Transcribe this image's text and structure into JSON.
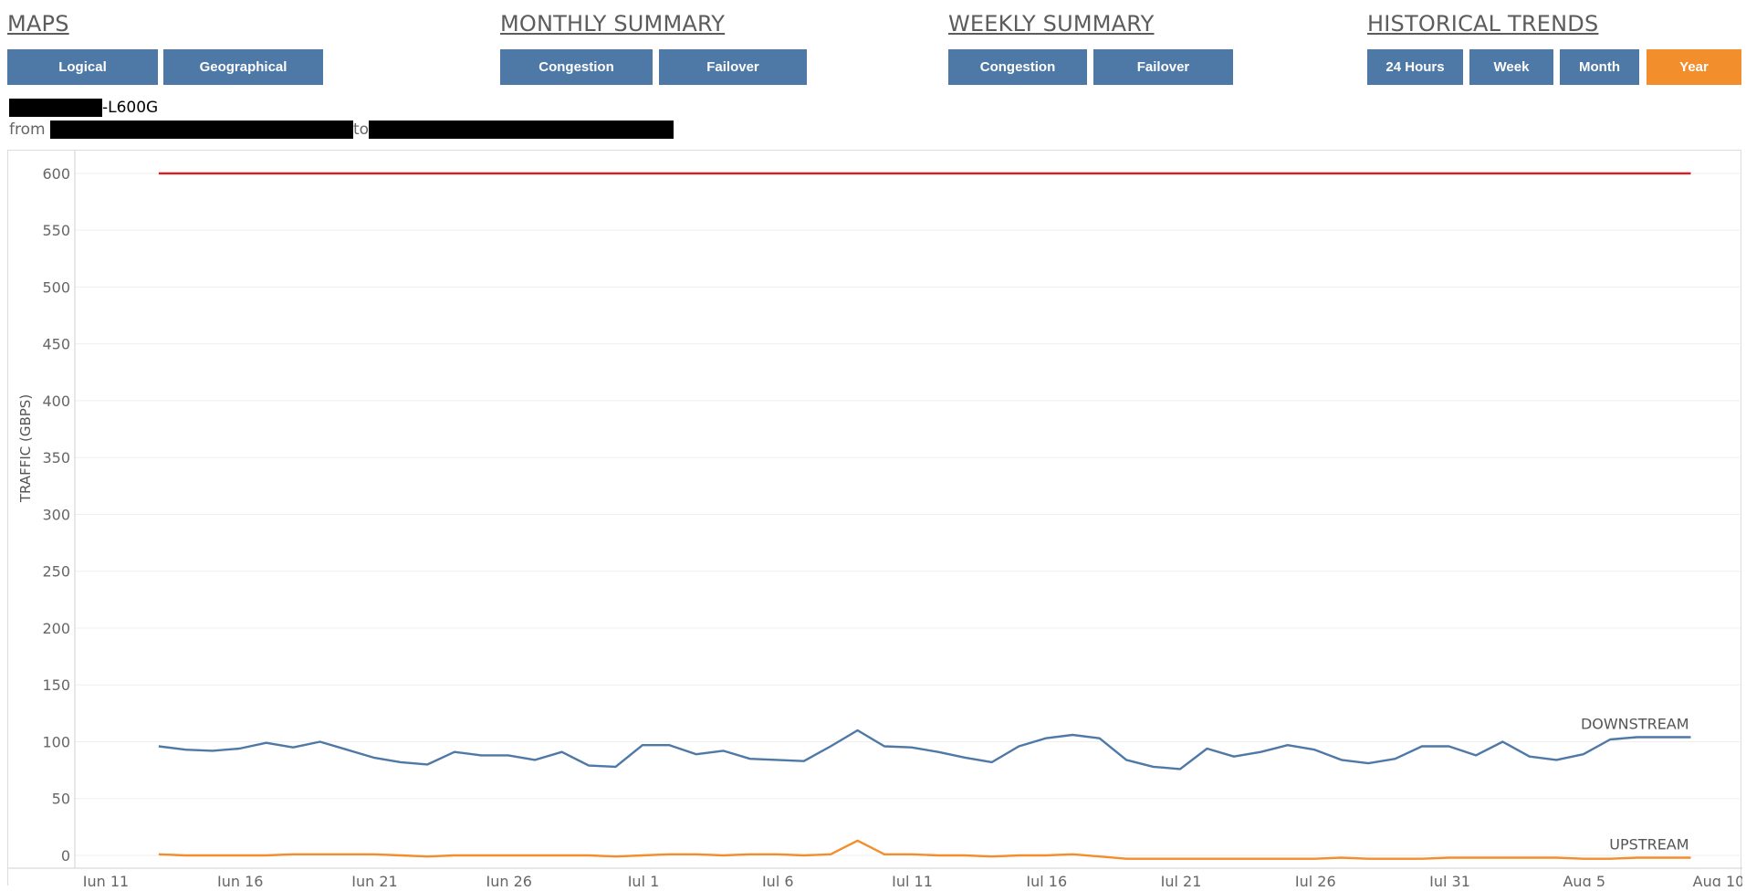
{
  "sections": {
    "maps": {
      "title": "MAPS",
      "buttons": [
        "Logical",
        "Geographical"
      ]
    },
    "monthly": {
      "title": "MONTHLY SUMMARY",
      "buttons": [
        "Congestion",
        "Failover"
      ]
    },
    "weekly": {
      "title": "WEEKLY SUMMARY",
      "buttons": [
        "Congestion",
        "Failover"
      ]
    },
    "historical": {
      "title": "HISTORICAL TRENDS",
      "buttons": [
        "24 Hours",
        "Week",
        "Month",
        "Year"
      ],
      "active": "Year"
    }
  },
  "header": {
    "device_suffix": "-L600G",
    "from_label": "from",
    "to_label": "to"
  },
  "colors": {
    "button": "#4e79a7",
    "active_button": "#f28e2b",
    "capacity": "#e31a1c",
    "downstream": "#4e79a7",
    "upstream": "#f28e2b"
  },
  "chart_data": {
    "type": "line",
    "ylabel": "TRAFFIC (GBPS)",
    "xlabel": "",
    "ylim": [
      0,
      620
    ],
    "x_range": [
      "2024-06-11",
      "2024-08-10"
    ],
    "y_ticks": [
      0,
      50,
      100,
      150,
      200,
      250,
      300,
      350,
      400,
      450,
      500,
      550,
      600
    ],
    "x_ticks": [
      "Jun 11",
      "Jun 16",
      "Jun 21",
      "Jun 26",
      "Jul 1",
      "Jul 6",
      "Jul 11",
      "Jul 16",
      "Jul 21",
      "Jul 26",
      "Jul 31",
      "Aug 5",
      "Aug 10"
    ],
    "x_tick_dates": [
      "2024-06-11",
      "2024-06-16",
      "2024-06-21",
      "2024-06-26",
      "2024-07-01",
      "2024-07-06",
      "2024-07-11",
      "2024-07-16",
      "2024-07-21",
      "2024-07-26",
      "2024-07-31",
      "2024-08-05",
      "2024-08-10"
    ],
    "grid": true,
    "x": [
      "2024-06-13",
      "2024-06-14",
      "2024-06-15",
      "2024-06-16",
      "2024-06-17",
      "2024-06-18",
      "2024-06-19",
      "2024-06-20",
      "2024-06-21",
      "2024-06-22",
      "2024-06-23",
      "2024-06-24",
      "2024-06-25",
      "2024-06-26",
      "2024-06-27",
      "2024-06-28",
      "2024-06-29",
      "2024-06-30",
      "2024-07-01",
      "2024-07-02",
      "2024-07-03",
      "2024-07-04",
      "2024-07-05",
      "2024-07-06",
      "2024-07-07",
      "2024-07-08",
      "2024-07-09",
      "2024-07-10",
      "2024-07-11",
      "2024-07-12",
      "2024-07-13",
      "2024-07-14",
      "2024-07-15",
      "2024-07-16",
      "2024-07-17",
      "2024-07-18",
      "2024-07-19",
      "2024-07-20",
      "2024-07-21",
      "2024-07-22",
      "2024-07-23",
      "2024-07-24",
      "2024-07-25",
      "2024-07-26",
      "2024-07-27",
      "2024-07-28",
      "2024-07-29",
      "2024-07-30",
      "2024-07-31",
      "2024-08-01",
      "2024-08-02",
      "2024-08-03",
      "2024-08-04",
      "2024-08-05",
      "2024-08-06",
      "2024-08-07",
      "2024-08-08",
      "2024-08-09"
    ],
    "series": [
      {
        "name": "",
        "color": "#e31a1c",
        "values": [
          600,
          600,
          600,
          600,
          600,
          600,
          600,
          600,
          600,
          600,
          600,
          600,
          600,
          600,
          600,
          600,
          600,
          600,
          600,
          600,
          600,
          600,
          600,
          600,
          600,
          600,
          600,
          600,
          600,
          600,
          600,
          600,
          600,
          600,
          600,
          600,
          600,
          600,
          600,
          600,
          600,
          600,
          600,
          600,
          600,
          600,
          600,
          600,
          600,
          600,
          600,
          600,
          600,
          600,
          600,
          600,
          600,
          600
        ]
      },
      {
        "name": "DOWNSTREAM",
        "color": "#4e79a7",
        "values": [
          96,
          93,
          92,
          94,
          99,
          95,
          100,
          93,
          86,
          82,
          80,
          91,
          88,
          88,
          84,
          91,
          79,
          78,
          97,
          97,
          89,
          92,
          85,
          84,
          83,
          96,
          110,
          96,
          95,
          91,
          86,
          82,
          96,
          103,
          106,
          103,
          84,
          78,
          76,
          94,
          87,
          91,
          97,
          93,
          84,
          81,
          85,
          96,
          96,
          88,
          100,
          87,
          84,
          89,
          102,
          104,
          104,
          104
        ]
      },
      {
        "name": "UPSTREAM",
        "color": "#f28e2b",
        "values": [
          1,
          0,
          0,
          0,
          0,
          1,
          1,
          1,
          1,
          0,
          -1,
          0,
          0,
          0,
          0,
          0,
          0,
          -1,
          0,
          1,
          1,
          0,
          1,
          1,
          0,
          1,
          13,
          1,
          1,
          0,
          0,
          -1,
          0,
          0,
          1,
          -1,
          -3,
          -3,
          -3,
          -3,
          -3,
          -3,
          -3,
          -3,
          -2,
          -3,
          -3,
          -3,
          -2,
          -2,
          -2,
          -2,
          -2,
          -3,
          -3,
          -2,
          -2,
          -2
        ]
      }
    ]
  }
}
